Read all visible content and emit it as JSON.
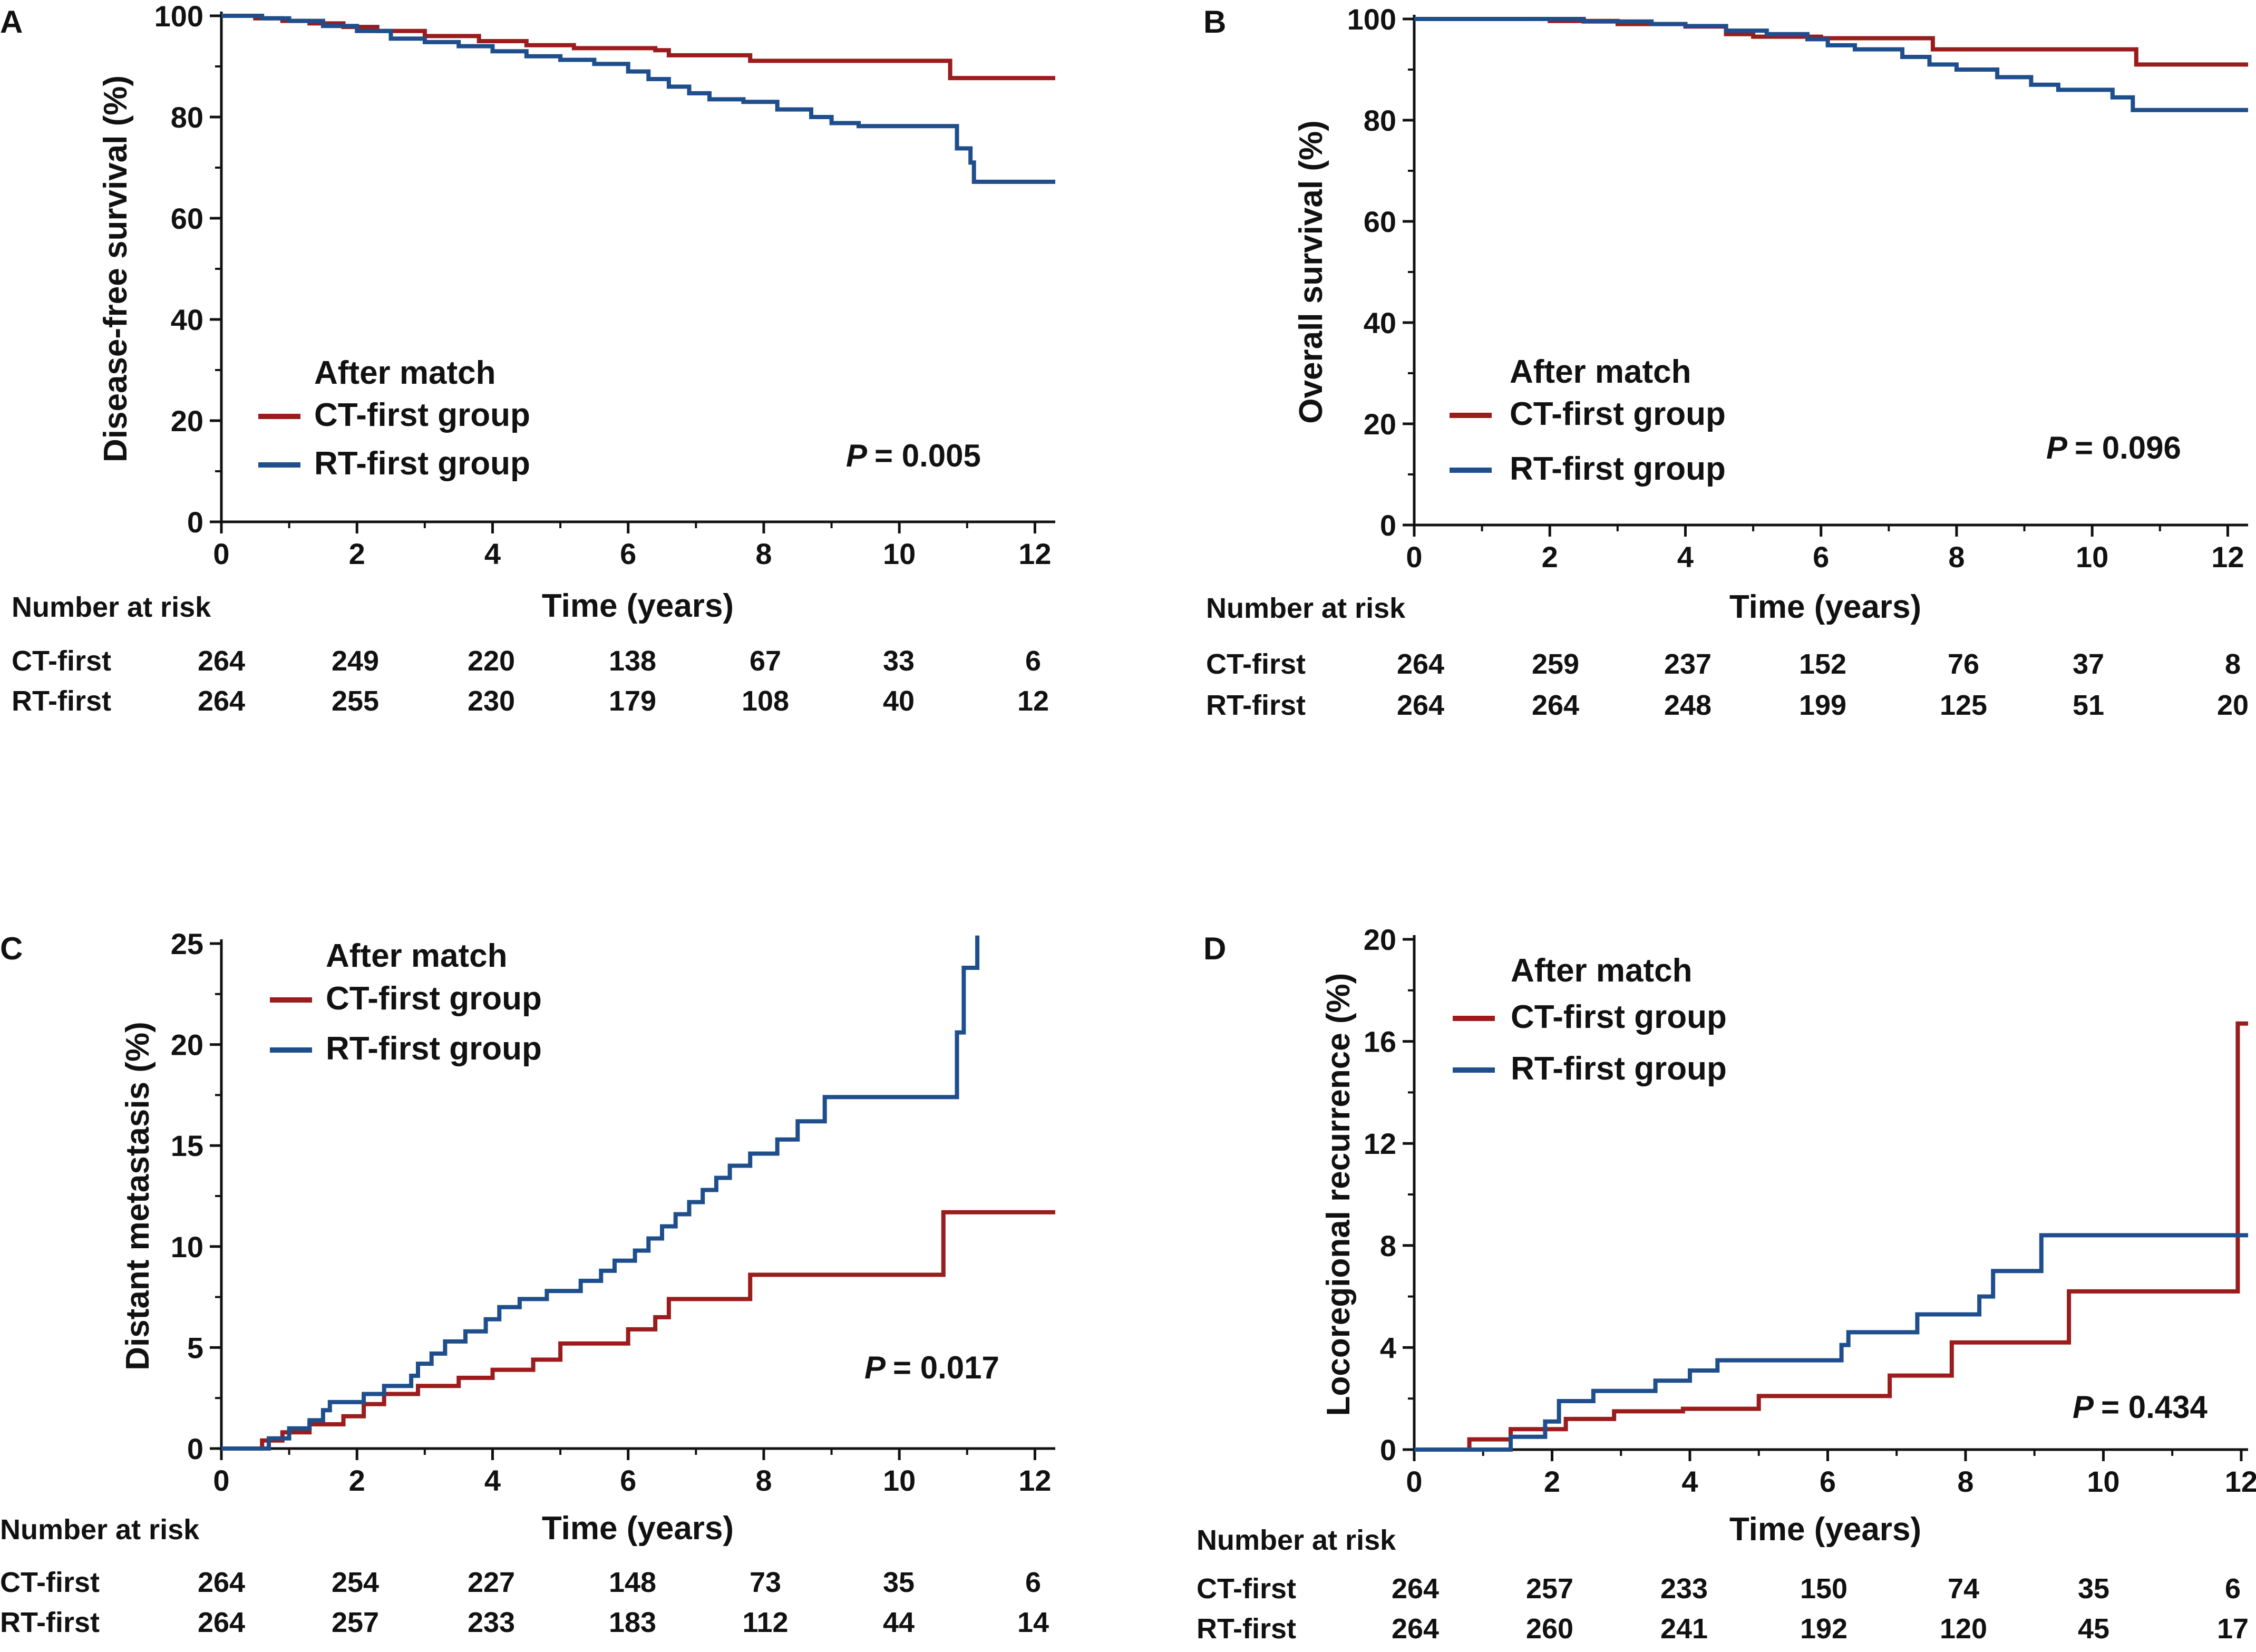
{
  "chart_data": [
    {
      "panel": "A",
      "type": "line",
      "step": true,
      "ylabel": "Disease-free survival (%)",
      "xlabel": "Time (years)",
      "xlim": [
        0,
        12.3
      ],
      "ylim": [
        0,
        100
      ],
      "xticks": [
        0,
        2,
        4,
        6,
        8,
        10,
        12
      ],
      "yticks": [
        0,
        20,
        40,
        60,
        80,
        100
      ],
      "legend_title": "After match",
      "pvalue_label": "P",
      "pvalue": "= 0.005",
      "series": [
        {
          "name": "CT-first group",
          "color": "#9b1c1c",
          "x": [
            0,
            0.5,
            0.9,
            1.3,
            1.8,
            2.3,
            3.0,
            3.8,
            4.5,
            5.2,
            6.4,
            6.6,
            7.8,
            10.7,
            10.75,
            12.3
          ],
          "y": [
            100,
            99.5,
            99,
            98.5,
            97.8,
            97,
            96,
            95,
            94.2,
            93.6,
            93.2,
            92.2,
            91.1,
            91.1,
            87.7,
            87.7
          ]
        },
        {
          "name": "RT-first group",
          "color": "#1f4e8c",
          "x": [
            0,
            0.6,
            1.0,
            1.5,
            2.0,
            2.5,
            3.0,
            3.5,
            4.0,
            4.5,
            5.0,
            5.5,
            6.0,
            6.3,
            6.6,
            6.9,
            7.2,
            7.7,
            8.2,
            8.7,
            9.0,
            9.4,
            10.8,
            10.85,
            11.05,
            11.1,
            12.3
          ],
          "y": [
            100,
            99.5,
            99,
            98,
            97,
            95.5,
            94.8,
            94,
            93,
            92,
            91.3,
            90.5,
            89,
            87.5,
            86,
            84.7,
            83.5,
            83,
            81.5,
            80,
            78.8,
            78.2,
            78.2,
            73.8,
            71,
            67.2,
            67.2
          ]
        }
      ],
      "risk_table": {
        "header": "Number at risk",
        "times": [
          0,
          2,
          4,
          6,
          8,
          10,
          12
        ],
        "rows": [
          {
            "label": "CT-first",
            "values": [
              "264",
              "249",
              "220",
              "138",
              "67",
              "33",
              "6"
            ]
          },
          {
            "label": "RT-first",
            "values": [
              "264",
              "255",
              "230",
              "179",
              "108",
              "40",
              "12"
            ]
          }
        ]
      }
    },
    {
      "panel": "B",
      "type": "line",
      "step": true,
      "ylabel": "Overall  survival (%)",
      "xlabel": "Time (years)",
      "xlim": [
        0,
        12.3
      ],
      "ylim": [
        0,
        100
      ],
      "xticks": [
        0,
        2,
        4,
        6,
        8,
        10,
        12
      ],
      "yticks": [
        0,
        20,
        40,
        60,
        80,
        100
      ],
      "legend_title": "After match",
      "pvalue_label": "P",
      "pvalue": "= 0.096",
      "series": [
        {
          "name": "CT-first group",
          "color": "#9b1c1c",
          "x": [
            0,
            2.0,
            3.0,
            4.0,
            4.6,
            5.0,
            6.0,
            7.6,
            7.65,
            10.6,
            10.65,
            12.3
          ],
          "y": [
            100,
            99.6,
            99,
            98.5,
            97,
            96.5,
            96.2,
            96.2,
            94,
            94,
            91,
            91
          ]
        },
        {
          "name": "RT-first group",
          "color": "#1f4e8c",
          "x": [
            0,
            2.5,
            3.5,
            4.0,
            4.6,
            5.2,
            5.8,
            6.1,
            6.5,
            7.2,
            7.6,
            8.0,
            8.6,
            9.1,
            9.5,
            10.3,
            10.6,
            12.3
          ],
          "y": [
            100,
            99.5,
            99,
            98.6,
            97.7,
            97,
            96,
            94.8,
            94,
            92.5,
            91,
            90,
            88.5,
            87,
            86,
            84.5,
            82,
            82
          ]
        }
      ],
      "risk_table": {
        "header": "Number at risk",
        "times": [
          0,
          2,
          4,
          6,
          8,
          10,
          12
        ],
        "rows": [
          {
            "label": "CT-first",
            "values": [
              "264",
              "259",
              "237",
              "152",
              "76",
              "37",
              "8"
            ]
          },
          {
            "label": "RT-first",
            "values": [
              "264",
              "264",
              "248",
              "199",
              "125",
              "51",
              "20"
            ]
          }
        ]
      }
    },
    {
      "panel": "C",
      "type": "line",
      "step": true,
      "ylabel": "Distant metastasis (%)",
      "xlabel": "Time (years)",
      "xlim": [
        0,
        12.3
      ],
      "ylim": [
        0,
        25
      ],
      "xticks": [
        0,
        2,
        4,
        6,
        8,
        10,
        12
      ],
      "yticks": [
        0,
        5,
        10,
        15,
        20,
        25
      ],
      "legend_title": "After match",
      "pvalue_label": "P",
      "pvalue": "= 0.017",
      "series": [
        {
          "name": "CT-first group",
          "color": "#9b1c1c",
          "x": [
            0,
            0.6,
            0.9,
            1.3,
            1.8,
            2.1,
            2.4,
            2.9,
            3.5,
            4.0,
            4.6,
            5.0,
            6.0,
            6.4,
            6.6,
            7.8,
            10.6,
            10.65,
            12.3
          ],
          "y": [
            0,
            0.4,
            0.8,
            1.2,
            1.6,
            2.2,
            2.7,
            3.1,
            3.5,
            3.9,
            4.4,
            5.2,
            5.9,
            6.5,
            7.4,
            8.6,
            8.6,
            11.7,
            11.7
          ]
        },
        {
          "name": "RT-first group",
          "color": "#1f4e8c",
          "x": [
            0,
            0.7,
            1.0,
            1.3,
            1.5,
            1.6,
            2.1,
            2.4,
            2.8,
            2.9,
            3.1,
            3.3,
            3.6,
            3.9,
            4.1,
            4.4,
            4.8,
            5.3,
            5.6,
            5.8,
            6.1,
            6.3,
            6.5,
            6.7,
            6.9,
            7.1,
            7.3,
            7.5,
            7.8,
            8.2,
            8.5,
            8.9,
            10.8,
            10.85,
            10.95,
            11.1,
            11.15
          ],
          "y": [
            0,
            0.5,
            1.0,
            1.4,
            1.9,
            2.3,
            2.7,
            3.1,
            3.6,
            4.2,
            4.7,
            5.3,
            5.8,
            6.4,
            7.0,
            7.4,
            7.8,
            8.3,
            8.8,
            9.3,
            9.8,
            10.4,
            11.0,
            11.6,
            12.2,
            12.8,
            13.4,
            14.0,
            14.6,
            15.3,
            16.2,
            17.4,
            17.4,
            20.6,
            23.8,
            23.8,
            25.4
          ]
        }
      ],
      "risk_table": {
        "header": "Number at risk",
        "times": [
          0,
          2,
          4,
          6,
          8,
          10,
          12
        ],
        "rows": [
          {
            "label": "CT-first",
            "values": [
              "264",
              "254",
              "227",
              "148",
              "73",
              "35",
              "6"
            ]
          },
          {
            "label": "RT-first",
            "values": [
              "264",
              "257",
              "233",
              "183",
              "112",
              "44",
              "14"
            ]
          }
        ]
      }
    },
    {
      "panel": "D",
      "type": "line",
      "step": true,
      "ylabel": "Locoregional recurrence (%)",
      "xlabel": "Time (years)",
      "xlim": [
        0,
        12.1
      ],
      "ylim": [
        0,
        20
      ],
      "xticks": [
        0,
        2,
        4,
        6,
        8,
        10,
        12
      ],
      "yticks": [
        0,
        4,
        8,
        12,
        16,
        20
      ],
      "legend_title": "After match",
      "pvalue_label": "P",
      "pvalue": "= 0.434",
      "series": [
        {
          "name": "CT-first group",
          "color": "#9b1c1c",
          "x": [
            0,
            0.8,
            1.4,
            2.2,
            2.9,
            3.9,
            5.0,
            6.9,
            7.8,
            9.5,
            11.9,
            11.95,
            12.1
          ],
          "y": [
            0,
            0.4,
            0.8,
            1.2,
            1.5,
            1.6,
            2.1,
            2.9,
            4.2,
            6.2,
            6.2,
            16.7,
            16.7
          ]
        },
        {
          "name": "RT-first group",
          "color": "#1f4e8c",
          "x": [
            0,
            1.4,
            1.9,
            2.1,
            2.6,
            3.5,
            4.0,
            4.4,
            4.9,
            6.2,
            6.3,
            7.3,
            8.2,
            8.4,
            9.1,
            12.1
          ],
          "y": [
            0,
            0.5,
            1.1,
            1.9,
            2.3,
            2.7,
            3.1,
            3.5,
            3.5,
            4.1,
            4.6,
            5.3,
            6.0,
            7.0,
            8.4,
            8.4
          ]
        }
      ],
      "risk_table": {
        "header": "Number at risk",
        "times": [
          0,
          2,
          4,
          6,
          8,
          10,
          12
        ],
        "rows": [
          {
            "label": "CT-first",
            "values": [
              "264",
              "257",
              "233",
              "150",
              "74",
              "35",
              "6"
            ]
          },
          {
            "label": "RT-first",
            "values": [
              "264",
              "260",
              "241",
              "192",
              "120",
              "45",
              "17"
            ]
          }
        ]
      }
    }
  ]
}
